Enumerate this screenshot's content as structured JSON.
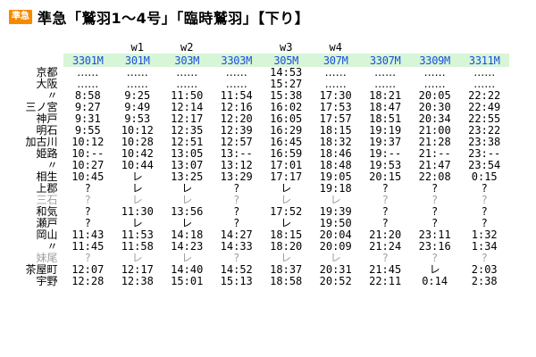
{
  "header": {
    "badge": "準急",
    "title": "準急「鷲羽1～4号」「臨時鷲羽」【下り】"
  },
  "colors": {
    "band": "#d7f5d7",
    "train_number": "#1a4fe0",
    "badge": "#f58a00",
    "dim": "#a0a0a0"
  },
  "trains": [
    {
      "number": "3301M",
      "note": ""
    },
    {
      "number": "301M",
      "note": "w1"
    },
    {
      "number": "303M",
      "note": "w2"
    },
    {
      "number": "3303M",
      "note": ""
    },
    {
      "number": "305M",
      "note": "w3"
    },
    {
      "number": "307M",
      "note": "w4"
    },
    {
      "number": "3307M",
      "note": ""
    },
    {
      "number": "3309M",
      "note": ""
    },
    {
      "number": "3311M",
      "note": ""
    }
  ],
  "rows": [
    {
      "station": "京都",
      "times": [
        "‥‥‥",
        "‥‥‥",
        "‥‥‥",
        "‥‥‥",
        "14:53",
        "‥‥‥",
        "‥‥‥",
        "‥‥‥",
        "‥‥‥"
      ]
    },
    {
      "station": "大阪",
      "times": [
        "‥‥‥",
        "‥‥‥",
        "‥‥‥",
        "‥‥‥",
        "15:27",
        "‥‥‥",
        "‥‥‥",
        "‥‥‥",
        "‥‥‥"
      ]
    },
    {
      "station": "〃",
      "times": [
        "8:58",
        "9:25",
        "11:50",
        "11:54",
        "15:38",
        "17:30",
        "18:21",
        "20:05",
        "22:22"
      ]
    },
    {
      "station": "三ノ宮",
      "times": [
        "9:27",
        "9:49",
        "12:14",
        "12:16",
        "16:02",
        "17:53",
        "18:47",
        "20:30",
        "22:49"
      ]
    },
    {
      "station": "神戸",
      "times": [
        "9:31",
        "9:53",
        "12:17",
        "12:20",
        "16:05",
        "17:57",
        "18:51",
        "20:34",
        "22:55"
      ]
    },
    {
      "station": "明石",
      "times": [
        "9:55",
        "10:12",
        "12:35",
        "12:39",
        "16:29",
        "18:15",
        "19:19",
        "21:00",
        "23:22"
      ]
    },
    {
      "station": "加古川",
      "times": [
        "10:12",
        "10:28",
        "12:51",
        "12:57",
        "16:45",
        "18:32",
        "19:37",
        "21:28",
        "23:38"
      ]
    },
    {
      "station": "姫路",
      "times": [
        "10:--",
        "10:42",
        "13:05",
        "13:--",
        "16:59",
        "18:46",
        "19:--",
        "21:--",
        "23:--"
      ]
    },
    {
      "station": "〃",
      "times": [
        "10:27",
        "10:44",
        "13:07",
        "13:12",
        "17:01",
        "18:48",
        "19:53",
        "21:47",
        "23:54"
      ]
    },
    {
      "station": "相生",
      "times": [
        "10:45",
        "レ",
        "13:25",
        "13:29",
        "17:17",
        "19:05",
        "20:15",
        "22:08",
        "0:15"
      ]
    },
    {
      "station": "上郡",
      "times": [
        "?",
        "レ",
        "レ",
        "?",
        "レ",
        "19:18",
        "?",
        "?",
        "?"
      ]
    },
    {
      "station": "三石",
      "dim": true,
      "times": [
        "?",
        "レ",
        "レ",
        "?",
        "レ",
        "レ",
        "?",
        "?",
        "?"
      ]
    },
    {
      "station": "和気",
      "times": [
        "?",
        "11:30",
        "13:56",
        "?",
        "17:52",
        "19:39",
        "?",
        "?",
        "?"
      ]
    },
    {
      "station": "瀬戸",
      "times": [
        "?",
        "レ",
        "レ",
        "?",
        "レ",
        "19:50",
        "?",
        "?",
        "?"
      ]
    },
    {
      "station": "岡山",
      "times": [
        "11:43",
        "11:53",
        "14:18",
        "14:27",
        "18:15",
        "20:04",
        "21:20",
        "23:11",
        "1:32"
      ]
    },
    {
      "station": "〃",
      "times": [
        "11:45",
        "11:58",
        "14:23",
        "14:33",
        "18:20",
        "20:09",
        "21:24",
        "23:16",
        "1:34"
      ]
    },
    {
      "station": "妹尾",
      "dim": true,
      "times": [
        "?",
        "レ",
        "レ",
        "?",
        "レ",
        "レ",
        "?",
        "?",
        "?"
      ]
    },
    {
      "station": "茶屋町",
      "times": [
        "12:07",
        "12:17",
        "14:40",
        "14:52",
        "18:37",
        "20:31",
        "21:45",
        "レ",
        "2:03"
      ]
    },
    {
      "station": "宇野",
      "times": [
        "12:28",
        "12:38",
        "15:01",
        "15:13",
        "18:58",
        "20:52",
        "22:11",
        "0:14",
        "2:38"
      ]
    }
  ]
}
